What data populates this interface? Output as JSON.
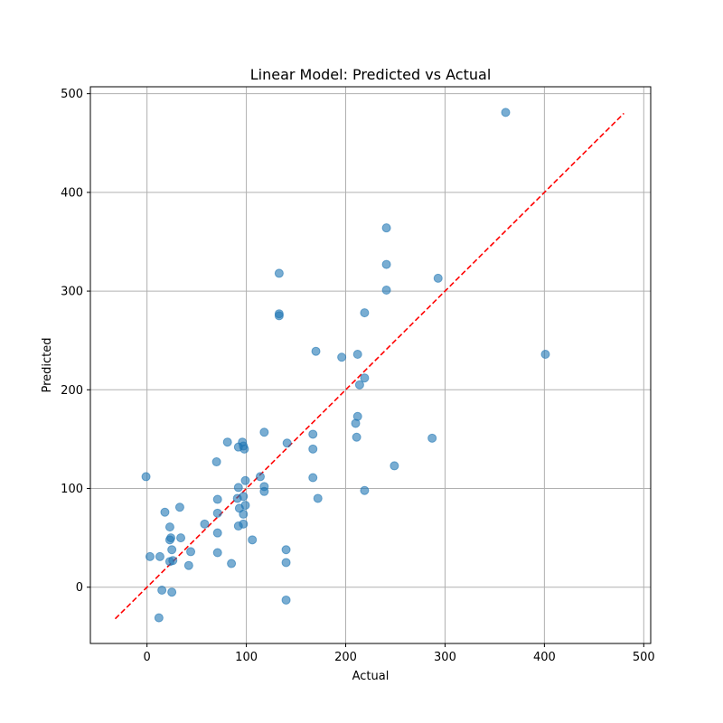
{
  "chart_data": {
    "type": "scatter",
    "title": "Linear Model: Predicted vs Actual",
    "xlabel": "Actual",
    "ylabel": "Predicted",
    "xlim": [
      -57,
      507
    ],
    "ylim": [
      -57,
      507
    ],
    "xticks": [
      0,
      100,
      200,
      300,
      400,
      500
    ],
    "yticks": [
      0,
      100,
      200,
      300,
      400,
      500
    ],
    "grid": true,
    "marker_color": "#1f77b4",
    "marker_alpha": 0.6,
    "reference_line": {
      "x": [
        -32,
        480
      ],
      "y": [
        -32,
        480
      ],
      "color": "#ff0000",
      "style": "dashed"
    },
    "points": [
      {
        "x": 361,
        "y": 481
      },
      {
        "x": 241,
        "y": 364
      },
      {
        "x": 241,
        "y": 327
      },
      {
        "x": 133,
        "y": 318
      },
      {
        "x": 293,
        "y": 313
      },
      {
        "x": 241,
        "y": 301
      },
      {
        "x": 133,
        "y": 277
      },
      {
        "x": 133,
        "y": 275
      },
      {
        "x": 219,
        "y": 278
      },
      {
        "x": 170,
        "y": 239
      },
      {
        "x": 196,
        "y": 233
      },
      {
        "x": 212,
        "y": 236
      },
      {
        "x": 401,
        "y": 236
      },
      {
        "x": 219,
        "y": 212
      },
      {
        "x": 214,
        "y": 205
      },
      {
        "x": 212,
        "y": 173
      },
      {
        "x": 210,
        "y": 166
      },
      {
        "x": 118,
        "y": 157
      },
      {
        "x": 167,
        "y": 155
      },
      {
        "x": 211,
        "y": 152
      },
      {
        "x": 287,
        "y": 151
      },
      {
        "x": 81,
        "y": 147
      },
      {
        "x": 96,
        "y": 147
      },
      {
        "x": 141,
        "y": 146
      },
      {
        "x": 97,
        "y": 143
      },
      {
        "x": 92,
        "y": 142
      },
      {
        "x": 98,
        "y": 140
      },
      {
        "x": 167,
        "y": 140
      },
      {
        "x": 70,
        "y": 127
      },
      {
        "x": 249,
        "y": 123
      },
      {
        "x": -1,
        "y": 112
      },
      {
        "x": 114,
        "y": 112
      },
      {
        "x": 167,
        "y": 111
      },
      {
        "x": 99,
        "y": 108
      },
      {
        "x": 118,
        "y": 102
      },
      {
        "x": 92,
        "y": 101
      },
      {
        "x": 118,
        "y": 97
      },
      {
        "x": 219,
        "y": 98
      },
      {
        "x": 97,
        "y": 92
      },
      {
        "x": 91,
        "y": 90
      },
      {
        "x": 172,
        "y": 90
      },
      {
        "x": 71,
        "y": 89
      },
      {
        "x": 99,
        "y": 83
      },
      {
        "x": 33,
        "y": 81
      },
      {
        "x": 93,
        "y": 80
      },
      {
        "x": 18,
        "y": 76
      },
      {
        "x": 71,
        "y": 75
      },
      {
        "x": 97,
        "y": 74
      },
      {
        "x": 58,
        "y": 64
      },
      {
        "x": 97,
        "y": 64
      },
      {
        "x": 92,
        "y": 62
      },
      {
        "x": 23,
        "y": 61
      },
      {
        "x": 71,
        "y": 55
      },
      {
        "x": 34,
        "y": 50
      },
      {
        "x": 24,
        "y": 50
      },
      {
        "x": 23,
        "y": 48
      },
      {
        "x": 106,
        "y": 48
      },
      {
        "x": 25,
        "y": 38
      },
      {
        "x": 140,
        "y": 38
      },
      {
        "x": 44,
        "y": 36
      },
      {
        "x": 71,
        "y": 35
      },
      {
        "x": 3,
        "y": 31
      },
      {
        "x": 13,
        "y": 31
      },
      {
        "x": 26,
        "y": 27
      },
      {
        "x": 23,
        "y": 26
      },
      {
        "x": 140,
        "y": 25
      },
      {
        "x": 85,
        "y": 24
      },
      {
        "x": 42,
        "y": 22
      },
      {
        "x": 15,
        "y": -3
      },
      {
        "x": 25,
        "y": -5
      },
      {
        "x": 140,
        "y": -13
      },
      {
        "x": 12,
        "y": -31
      }
    ]
  }
}
